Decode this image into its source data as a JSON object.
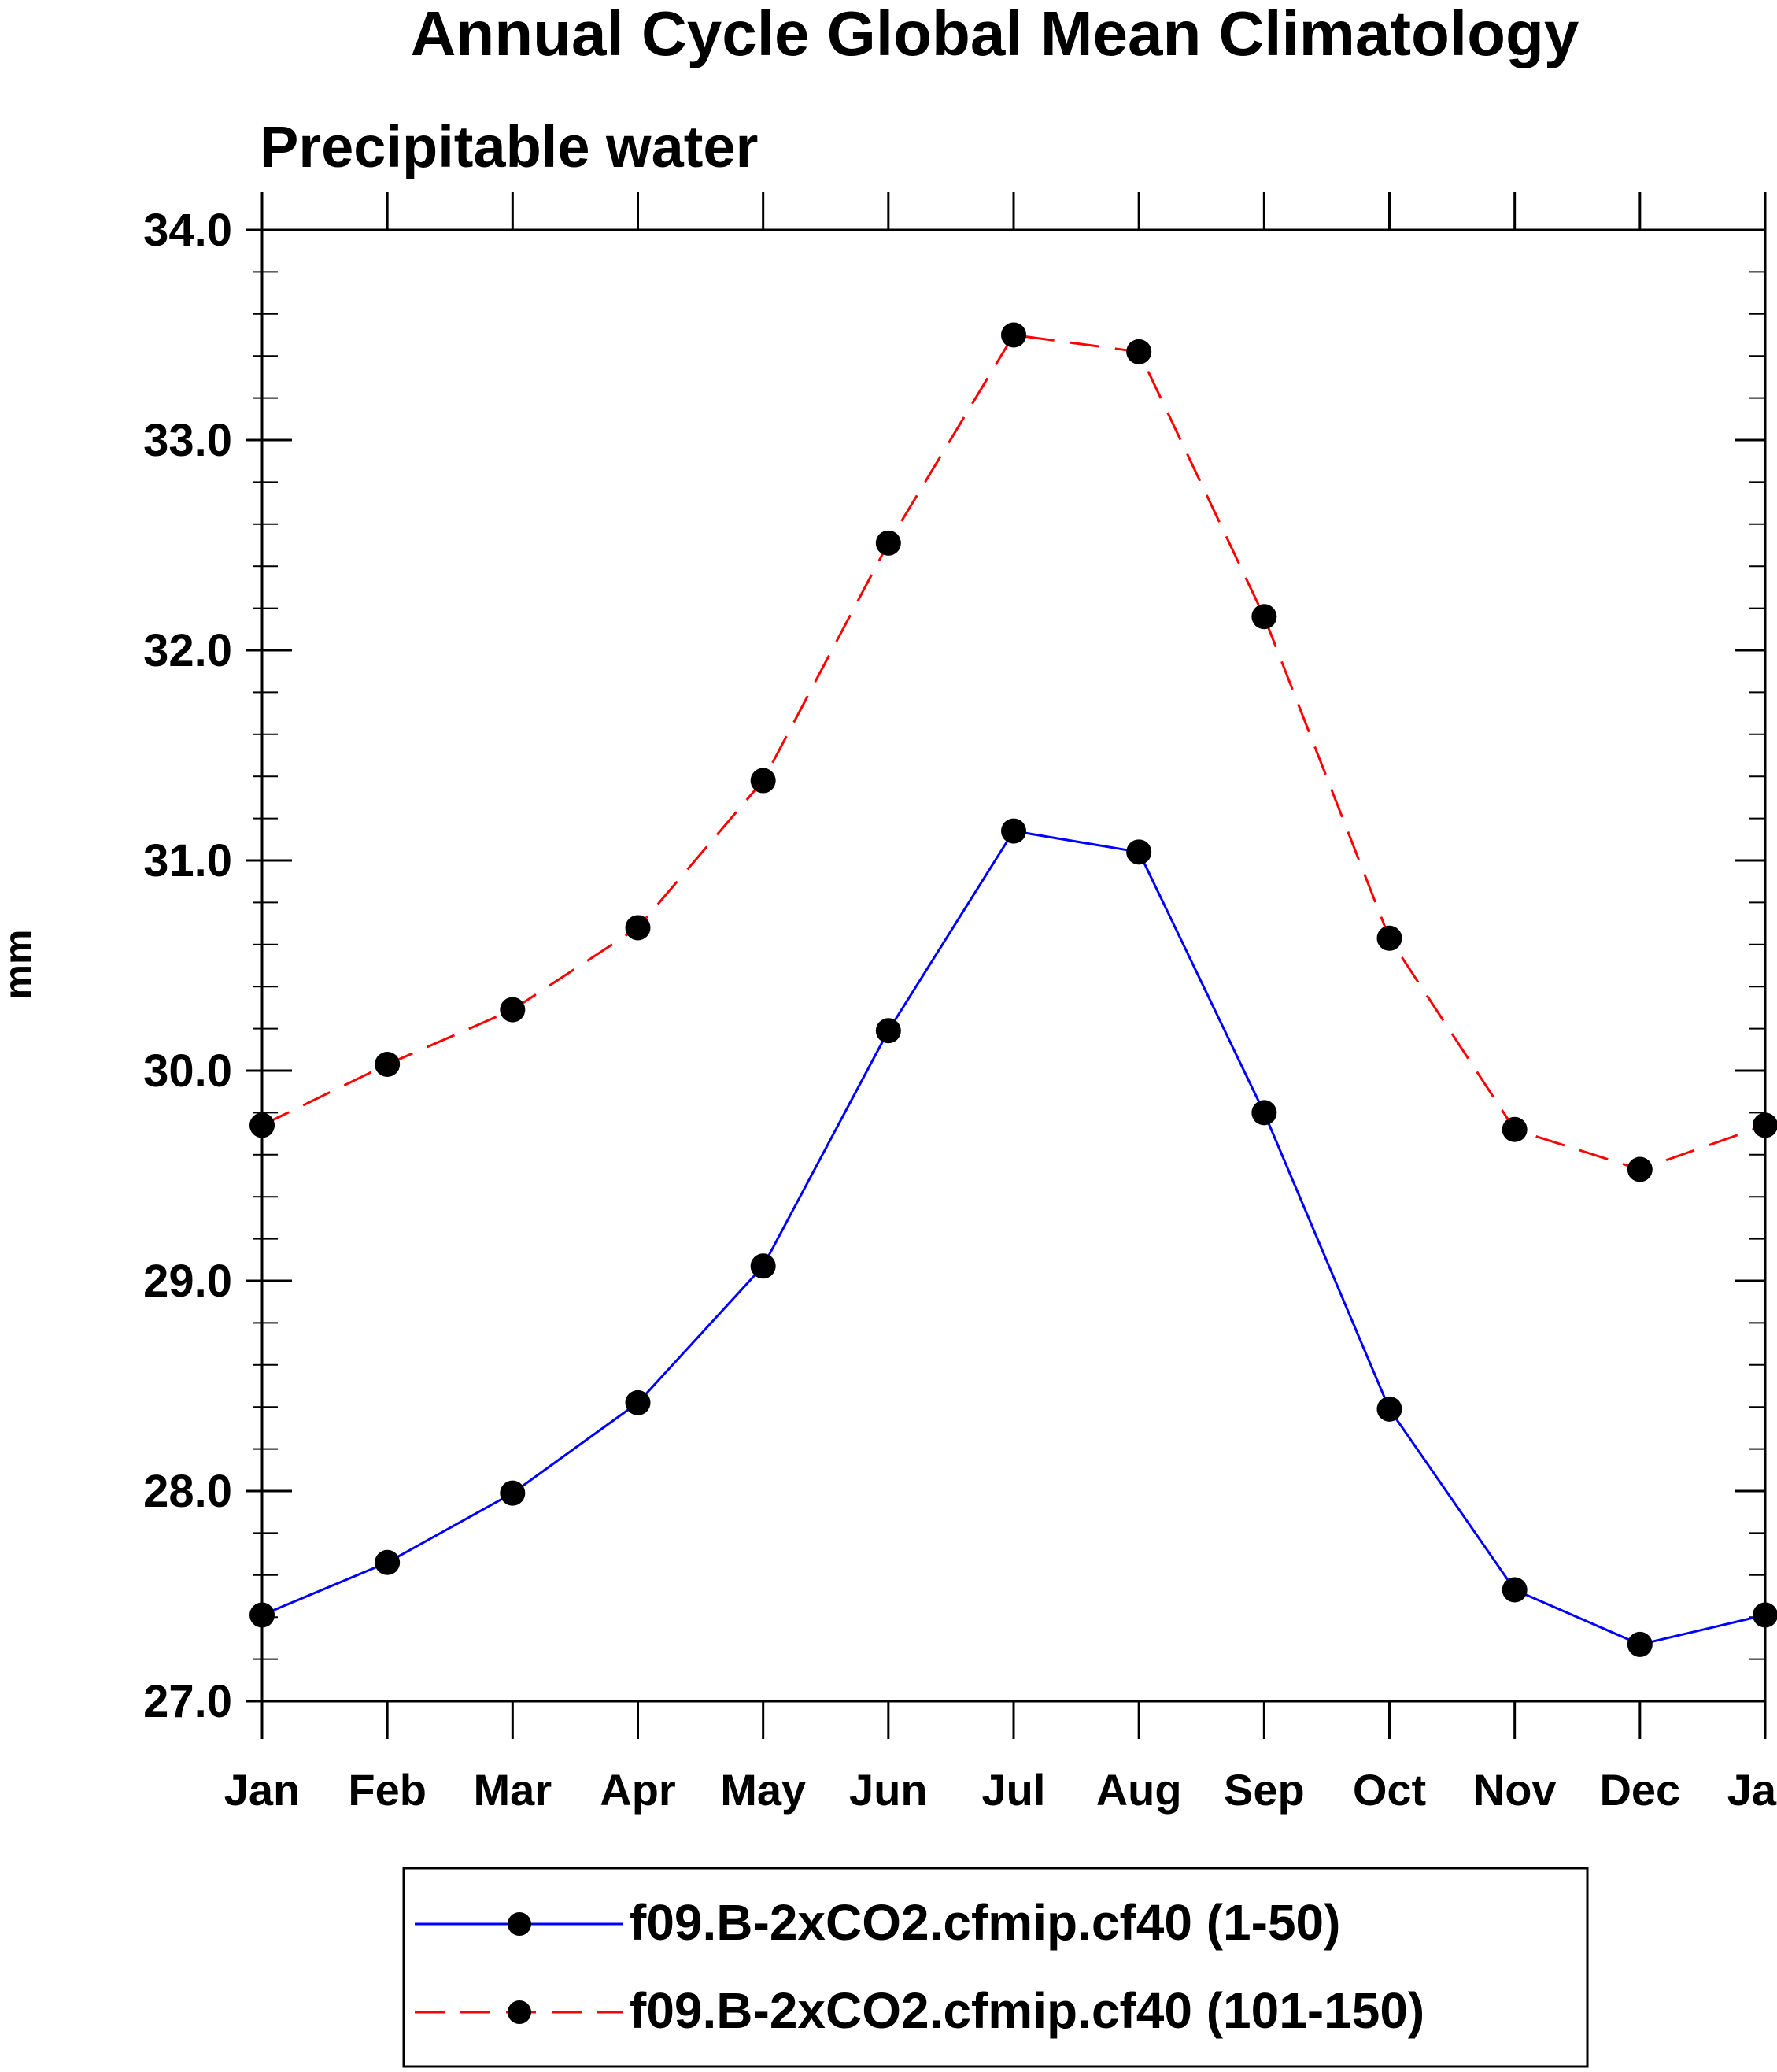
{
  "chart_data": {
    "type": "line",
    "title": "Annual Cycle Global Mean Climatology",
    "subtitle": "Precipitable water",
    "xlabel": "",
    "ylabel": "mm",
    "categories": [
      "Jan",
      "Feb",
      "Mar",
      "Apr",
      "May",
      "Jun",
      "Jul",
      "Aug",
      "Sep",
      "Oct",
      "Nov",
      "Dec",
      "Jan"
    ],
    "ylim": [
      27.0,
      34.0
    ],
    "yticks": [
      "27.0",
      "28.0",
      "29.0",
      "30.0",
      "31.0",
      "32.0",
      "33.0",
      "34.0"
    ],
    "grid": false,
    "legend_position": "bottom",
    "series": [
      {
        "name": "f09.B-2xCO2.cfmip.cf40 (1-50)",
        "color": "#0000ff",
        "dash": "solid",
        "marker": "filled-circle",
        "values": [
          27.41,
          27.66,
          27.99,
          28.42,
          29.07,
          30.19,
          31.14,
          31.04,
          29.8,
          28.39,
          27.53,
          27.27,
          27.41
        ]
      },
      {
        "name": "f09.B-2xCO2.cfmip.cf40 (101-150)",
        "color": "#ff0000",
        "dash": "dashed",
        "marker": "filled-circle",
        "values": [
          29.74,
          30.03,
          30.29,
          30.68,
          31.38,
          32.51,
          33.5,
          33.42,
          32.16,
          30.63,
          29.72,
          29.53,
          29.74
        ]
      }
    ]
  }
}
